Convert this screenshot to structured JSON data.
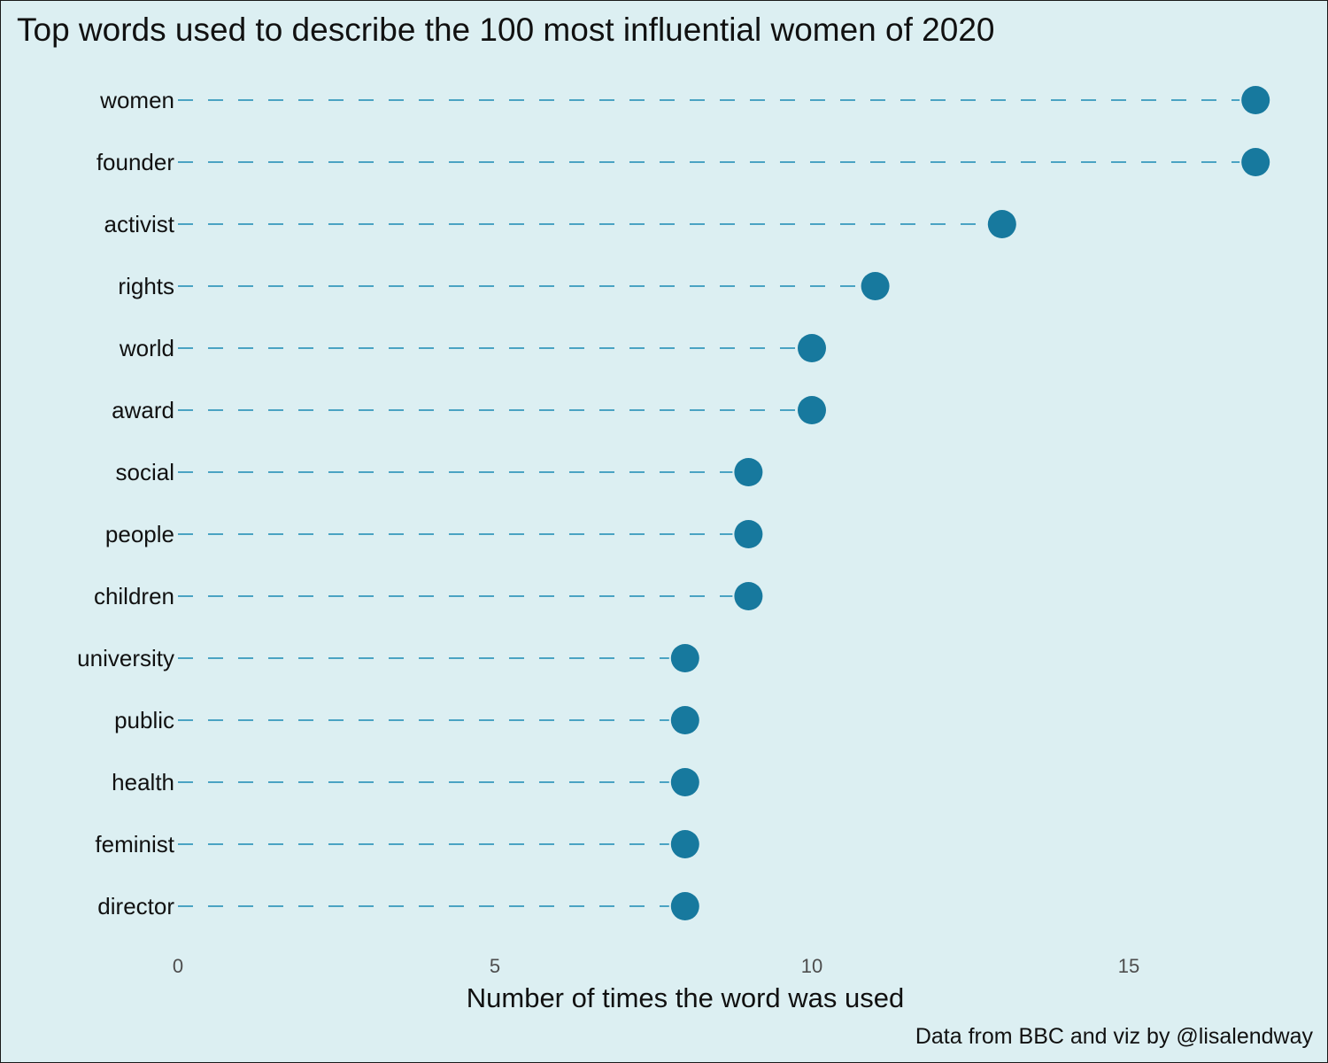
{
  "chart_data": {
    "type": "lollipop",
    "title": "Top words used to describe the 100 most influential women of 2020",
    "xlabel": "Number of times the word was used",
    "ylabel": "",
    "caption": "Data from BBC and viz by @lisalendway",
    "xlim": [
      0,
      17
    ],
    "x_ticks": [
      0,
      5,
      10,
      15
    ],
    "grid": false,
    "categories": [
      "women",
      "founder",
      "activist",
      "rights",
      "world",
      "award",
      "social",
      "people",
      "children",
      "university",
      "public",
      "health",
      "feminist",
      "director"
    ],
    "values": [
      17,
      17,
      13,
      11,
      10,
      10,
      9,
      9,
      9,
      8,
      8,
      8,
      8,
      8
    ]
  },
  "colors": {
    "background": "#dcEFF2",
    "point": "#17799e",
    "segment": "#4aa3c3"
  }
}
